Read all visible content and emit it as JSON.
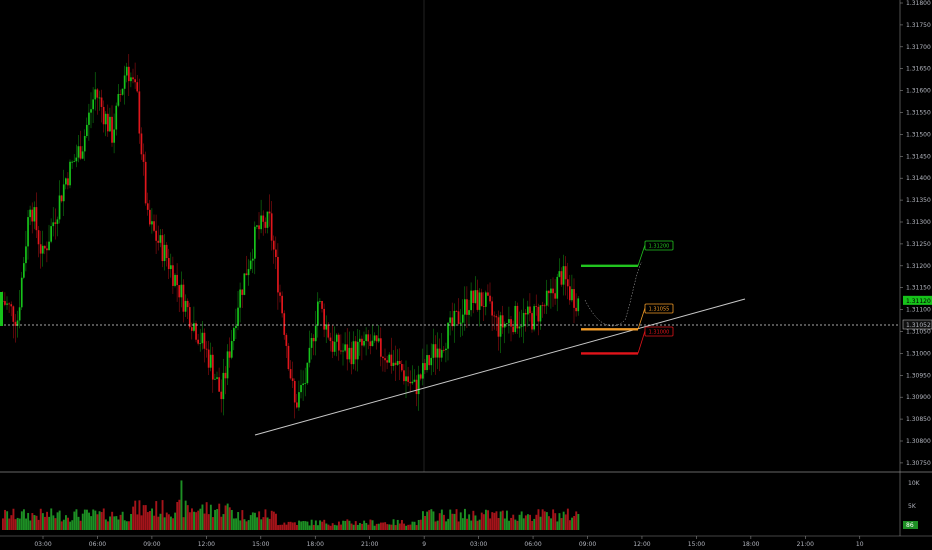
{
  "colors": {
    "background": "#000000",
    "up": "#16c21a",
    "down": "#e0161c",
    "volume_up": "#1d8f24",
    "volume_down": "#a5141a",
    "trendline": "#c8c8c8",
    "target": "#22c41f",
    "entry": "#f29b27",
    "stop": "#e1141a",
    "axis_text": "#b2b5be",
    "divider": "#aaaaaa"
  },
  "chart_data": {
    "type": "candlestick",
    "price_axis": {
      "ylim": [
        1.3073,
        1.3181
      ],
      "tick_labels": [
        "1.31800",
        "1.31750",
        "1.31700",
        "1.31650",
        "1.31600",
        "1.31550",
        "1.31500",
        "1.31450",
        "1.31400",
        "1.31350",
        "1.31300",
        "1.31250",
        "1.31200",
        "1.31150",
        "1.31100",
        "1.31050",
        "1.31000",
        "1.30950",
        "1.30900",
        "1.30850",
        "1.30800",
        "1.30750"
      ],
      "last_price_label": "1.31052",
      "last_price": 1.31052,
      "current_price_label": "1.31120"
    },
    "time_axis": {
      "tick_labels": [
        "03:00",
        "06:00",
        "09:00",
        "12:00",
        "15:00",
        "18:00",
        "21:00",
        "9",
        "03:00",
        "06:00",
        "09:00",
        "12:00",
        "15:00",
        "18:00",
        "21:00",
        "10"
      ]
    },
    "volume_axis": {
      "tick_labels": [
        "10K",
        "5K"
      ],
      "current_volume_label": "86",
      "ylim": [
        0,
        12000
      ]
    },
    "annotations": {
      "target": {
        "label": "1.31200",
        "price": 1.312
      },
      "entry": {
        "label": "1.31055",
        "price": 1.31055
      },
      "stop": {
        "label": "1.31000",
        "price": 1.31
      },
      "trendline": {
        "from_time": "14:45",
        "from_price": 1.3081,
        "to_time": "17:45 (day 2)",
        "to_price": 1.3111
      }
    },
    "hourly_closes_day1": [
      1.3112,
      1.3115,
      1.3135,
      1.3125,
      1.3145,
      1.3165,
      1.311,
      1.3095,
      1.3085,
      1.3105,
      1.3125,
      1.3095,
      1.3105,
      1.31,
      1.3098,
      1.3095,
      1.31,
      1.3105,
      1.3115,
      1.311,
      1.3108,
      1.311
    ]
  }
}
